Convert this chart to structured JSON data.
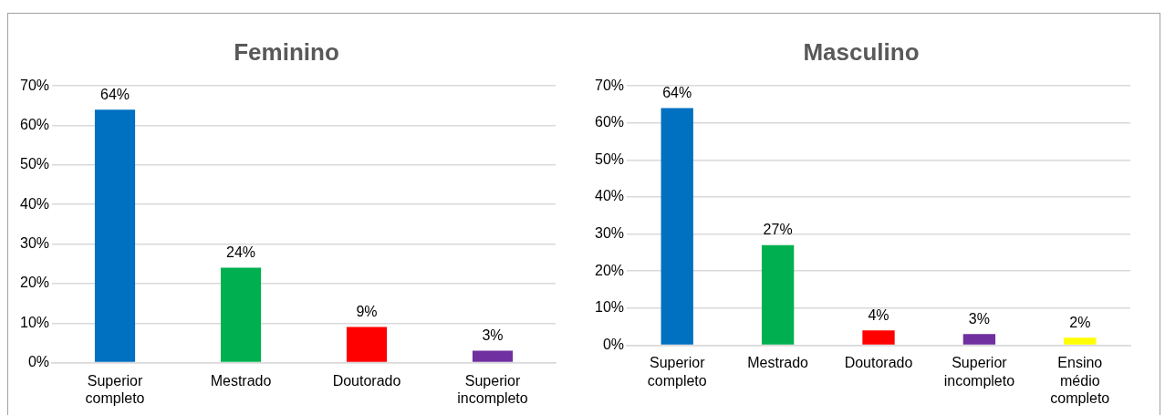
{
  "chart_data": [
    {
      "type": "bar",
      "title": "Feminino",
      "categories": [
        "Superior completo",
        "Mestrado",
        "Doutorado",
        "Superior incompleto"
      ],
      "values": [
        64,
        24,
        9,
        3
      ],
      "colors": [
        "#0070c0",
        "#00b050",
        "#ff0000",
        "#7030a0"
      ],
      "ylim": [
        0,
        70
      ],
      "yticks": [
        {
          "value": 0,
          "label": "0%"
        },
        {
          "value": 10,
          "label": "10%"
        },
        {
          "value": 20,
          "label": "20%"
        },
        {
          "value": 30,
          "label": "30%"
        },
        {
          "value": 40,
          "label": "40%"
        },
        {
          "value": 50,
          "label": "50%"
        },
        {
          "value": 60,
          "label": "60%"
        },
        {
          "value": 70,
          "label": "70%"
        }
      ],
      "value_labels": [
        "64%",
        "24%",
        "9%",
        "3%"
      ],
      "grid": "y",
      "legend": false
    },
    {
      "type": "bar",
      "title": "Masculino",
      "categories": [
        "Superior completo",
        "Mestrado",
        "Doutorado",
        "Superior incompleto",
        "Ensino médio completo"
      ],
      "values": [
        64,
        27,
        4,
        3,
        2
      ],
      "colors": [
        "#0070c0",
        "#00b050",
        "#ff0000",
        "#7030a0",
        "#ffff00"
      ],
      "ylim": [
        0,
        70
      ],
      "yticks": [
        {
          "value": 0,
          "label": "0%"
        },
        {
          "value": 10,
          "label": "10%"
        },
        {
          "value": 20,
          "label": "20%"
        },
        {
          "value": 30,
          "label": "30%"
        },
        {
          "value": 40,
          "label": "40%"
        },
        {
          "value": 50,
          "label": "50%"
        },
        {
          "value": 60,
          "label": "60%"
        },
        {
          "value": 70,
          "label": "70%"
        }
      ],
      "value_labels": [
        "64%",
        "27%",
        "4%",
        "3%",
        "2%"
      ],
      "grid": "y",
      "legend": false
    }
  ]
}
